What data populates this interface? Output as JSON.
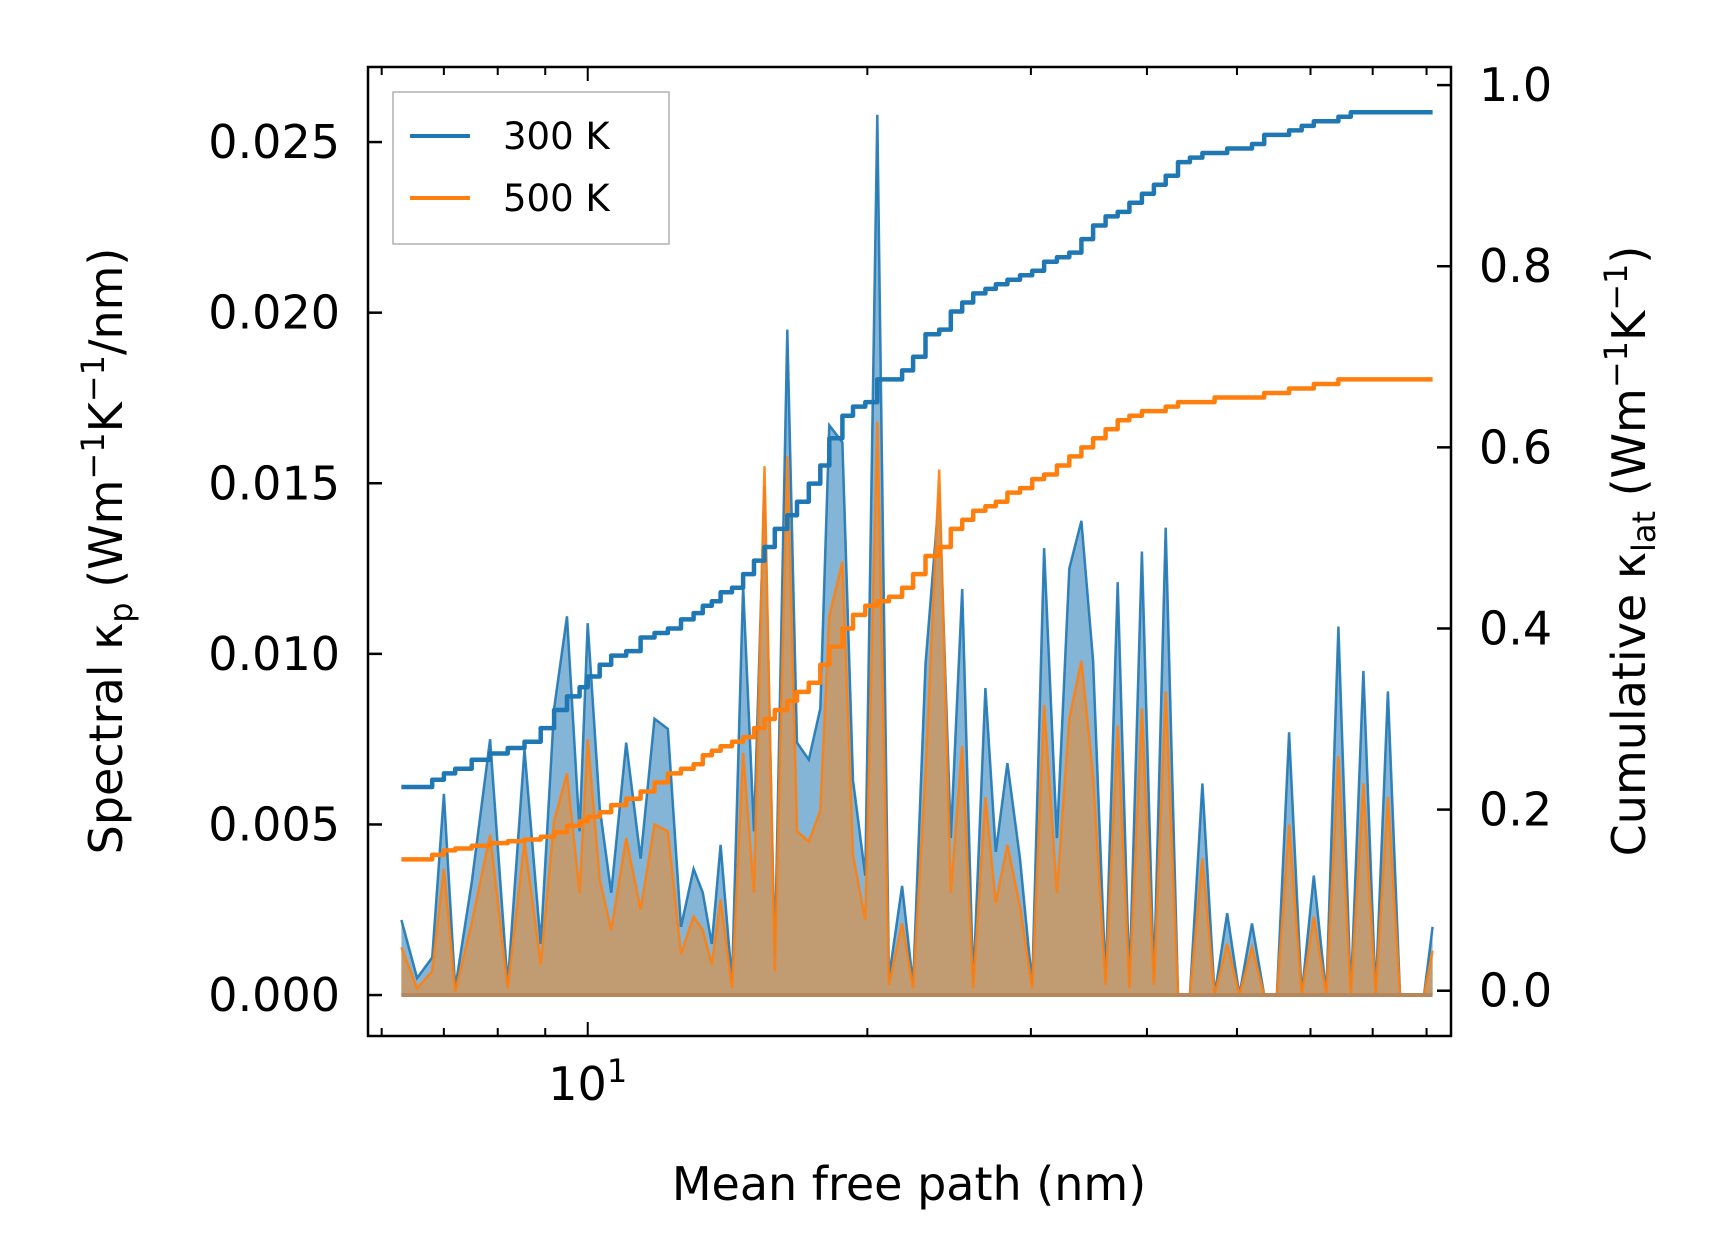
{
  "chart_data": {
    "type": "area",
    "title": "",
    "xlabel": "Mean free path (nm)",
    "ylabel": {
      "prefix": "Spectral κ",
      "sub": "p",
      "suffix": " (Wm",
      "sup1": "−1",
      "mid": "K",
      "sup2": "−1",
      "end": "/nm)"
    },
    "y2label": {
      "prefix": "Cumulative κ",
      "sub": "lat",
      "suffix": " (Wm",
      "sup1": "−1",
      "mid": "K",
      "sup2": "−1",
      "end": ")"
    },
    "xscale": "log",
    "xlim": [
      5.8,
      85
    ],
    "ylim": [
      -0.0012,
      0.0272
    ],
    "y2lim": [
      -0.05,
      1.02
    ],
    "x_tick_label": {
      "base": "10",
      "exp": "1",
      "value": 10
    },
    "y_ticks": [
      "0.000",
      "0.005",
      "0.010",
      "0.015",
      "0.020",
      "0.025"
    ],
    "y2_ticks": [
      "0.0",
      "0.2",
      "0.4",
      "0.6",
      "0.8",
      "1.0"
    ],
    "legend": {
      "position": "top-left",
      "entries": [
        "300 K",
        "500 K"
      ]
    },
    "colors": {
      "300 K": "#1f77b4",
      "500 K": "#ff7f0e",
      "fill_overlap": "#c49a6c"
    },
    "x": [
      6.3,
      6.55,
      6.8,
      7.0,
      7.2,
      7.5,
      7.85,
      8.2,
      8.55,
      8.9,
      9.2,
      9.5,
      9.8,
      10.0,
      10.3,
      10.6,
      11.0,
      11.4,
      11.8,
      12.2,
      12.6,
      13.0,
      13.3,
      13.6,
      13.9,
      14.3,
      14.7,
      15.1,
      15.5,
      15.9,
      16.4,
      16.8,
      17.3,
      17.8,
      18.2,
      18.8,
      19.3,
      19.9,
      20.5,
      21.1,
      21.8,
      22.4,
      23.1,
      23.9,
      24.6,
      25.3,
      26.0,
      26.8,
      27.5,
      28.3,
      29.2,
      30.1,
      31.0,
      32.0,
      33.0,
      34.0,
      35.0,
      36.1,
      37.2,
      38.3,
      39.5,
      40.7,
      41.9,
      43.2,
      44.5,
      45.9,
      47.3,
      48.8,
      50.3,
      51.9,
      53.5,
      55.2,
      56.9,
      58.7,
      60.5,
      62.4,
      64.3,
      66.3,
      68.4,
      70.5,
      72.7,
      74.9,
      77.2,
      79.5,
      81.2
    ],
    "series": [
      {
        "name": "300 K",
        "spectral": [
          0.0022,
          0.0005,
          0.0011,
          0.0059,
          0.0002,
          0.0033,
          0.0075,
          0.0003,
          0.0072,
          0.0015,
          0.0084,
          0.0111,
          0.0048,
          0.0109,
          0.0055,
          0.003,
          0.0074,
          0.004,
          0.0081,
          0.0078,
          0.002,
          0.0037,
          0.003,
          0.0015,
          0.0044,
          0.0004,
          0.012,
          0.0048,
          0.0149,
          0.0011,
          0.0195,
          0.0074,
          0.0069,
          0.0084,
          0.0167,
          0.0162,
          0.0063,
          0.0035,
          0.0258,
          0.0005,
          0.0032,
          0.0003,
          0.0097,
          0.0147,
          0.0046,
          0.0119,
          0.0003,
          0.009,
          0.0042,
          0.0068,
          0.004,
          0.0003,
          0.0131,
          0.0046,
          0.0125,
          0.0139,
          0.0098,
          0.0004,
          0.0121,
          0.0003,
          0.013,
          0.0004,
          0.0137,
          0.0,
          0.0,
          0.0062,
          0.0,
          0.0024,
          0.0,
          0.0021,
          0.0,
          0.0,
          0.0077,
          0.0,
          0.0035,
          0.0,
          0.0108,
          0.0,
          0.0095,
          0.0,
          0.0089,
          0.0,
          0.0,
          0.0,
          0.002
        ],
        "cumulative": [
          0.225,
          0.225,
          0.233,
          0.24,
          0.245,
          0.255,
          0.262,
          0.268,
          0.275,
          0.29,
          0.31,
          0.325,
          0.335,
          0.347,
          0.36,
          0.37,
          0.375,
          0.39,
          0.395,
          0.4,
          0.41,
          0.417,
          0.425,
          0.43,
          0.44,
          0.445,
          0.46,
          0.475,
          0.49,
          0.51,
          0.525,
          0.54,
          0.56,
          0.58,
          0.61,
          0.635,
          0.645,
          0.65,
          0.675,
          0.675,
          0.685,
          0.7,
          0.725,
          0.73,
          0.75,
          0.76,
          0.77,
          0.775,
          0.78,
          0.785,
          0.79,
          0.795,
          0.805,
          0.81,
          0.815,
          0.83,
          0.845,
          0.855,
          0.86,
          0.87,
          0.88,
          0.89,
          0.9,
          0.915,
          0.92,
          0.925,
          0.925,
          0.93,
          0.93,
          0.935,
          0.945,
          0.945,
          0.95,
          0.955,
          0.96,
          0.96,
          0.965,
          0.97,
          0.97,
          0.97,
          0.97,
          0.97,
          0.97,
          0.97,
          0.97
        ]
      },
      {
        "name": "500 K",
        "spectral": [
          0.0014,
          0.0002,
          0.0007,
          0.0037,
          0.0001,
          0.0021,
          0.0047,
          0.0002,
          0.0045,
          0.0009,
          0.0051,
          0.0065,
          0.003,
          0.0075,
          0.0034,
          0.0019,
          0.0046,
          0.0025,
          0.005,
          0.0048,
          0.0012,
          0.0023,
          0.0019,
          0.0009,
          0.0028,
          0.0002,
          0.0071,
          0.003,
          0.0155,
          0.0007,
          0.0158,
          0.0048,
          0.0045,
          0.0054,
          0.0111,
          0.0127,
          0.0041,
          0.0022,
          0.0168,
          0.0003,
          0.0021,
          0.0002,
          0.0065,
          0.0154,
          0.003,
          0.0073,
          0.0002,
          0.0058,
          0.0027,
          0.0044,
          0.0026,
          0.0002,
          0.0085,
          0.003,
          0.0081,
          0.0098,
          0.0064,
          0.0003,
          0.0079,
          0.0002,
          0.0084,
          0.0003,
          0.0089,
          0.0,
          0.0,
          0.004,
          0.0,
          0.0015,
          0.0,
          0.0014,
          0.0,
          0.0,
          0.005,
          0.0,
          0.0023,
          0.0,
          0.007,
          0.0,
          0.0062,
          0.0,
          0.0058,
          0.0,
          0.0,
          0.0,
          0.0013
        ],
        "cumulative": [
          0.145,
          0.145,
          0.15,
          0.155,
          0.157,
          0.16,
          0.163,
          0.165,
          0.167,
          0.17,
          0.175,
          0.182,
          0.187,
          0.192,
          0.197,
          0.205,
          0.212,
          0.22,
          0.23,
          0.24,
          0.245,
          0.25,
          0.26,
          0.265,
          0.27,
          0.275,
          0.28,
          0.29,
          0.3,
          0.31,
          0.32,
          0.33,
          0.34,
          0.36,
          0.38,
          0.4,
          0.415,
          0.425,
          0.43,
          0.435,
          0.445,
          0.46,
          0.48,
          0.49,
          0.51,
          0.52,
          0.53,
          0.535,
          0.54,
          0.55,
          0.555,
          0.565,
          0.57,
          0.58,
          0.59,
          0.6,
          0.61,
          0.62,
          0.63,
          0.635,
          0.64,
          0.64,
          0.645,
          0.65,
          0.65,
          0.65,
          0.655,
          0.655,
          0.655,
          0.655,
          0.66,
          0.66,
          0.665,
          0.665,
          0.67,
          0.67,
          0.675,
          0.675,
          0.675,
          0.675,
          0.675,
          0.675,
          0.675,
          0.675,
          0.675
        ]
      }
    ]
  }
}
